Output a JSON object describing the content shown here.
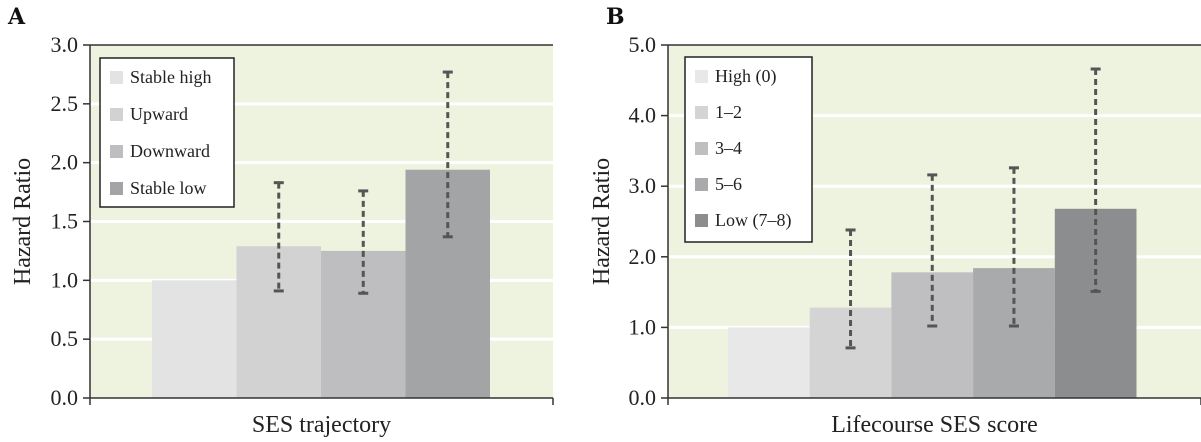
{
  "chart_data": [
    {
      "panel": "A",
      "type": "bar",
      "xlabel": "SES trajectory",
      "ylabel": "Hazard Ratio",
      "ylim": [
        0,
        3.0
      ],
      "yticks": [
        "0.0",
        "0.5",
        "1.0",
        "1.5",
        "2.0",
        "2.5",
        "3.0"
      ],
      "ytick_values": [
        0,
        0.5,
        1.0,
        1.5,
        2.0,
        2.5,
        3.0
      ],
      "grid": true,
      "legend_position": "top-left",
      "categories": [
        "Stable high",
        "Upward",
        "Downward",
        "Stable low"
      ],
      "values": [
        1.0,
        1.29,
        1.25,
        1.94
      ],
      "ci_low": [
        null,
        0.91,
        0.89,
        1.37
      ],
      "ci_high": [
        null,
        1.83,
        1.76,
        2.77
      ],
      "colors": [
        "#e3e3e3",
        "#d2d2d3",
        "#bebec0",
        "#a3a4a6"
      ]
    },
    {
      "panel": "B",
      "type": "bar",
      "xlabel": "Lifecourse SES score",
      "ylabel": "Hazard Ratio",
      "ylim": [
        0,
        5.0
      ],
      "yticks": [
        "0.0",
        "1.0",
        "2.0",
        "3.0",
        "4.0",
        "5.0"
      ],
      "ytick_values": [
        0,
        1.0,
        2.0,
        3.0,
        4.0,
        5.0
      ],
      "grid": true,
      "legend_position": "top-left",
      "categories": [
        "High (0)",
        "1–2",
        "3–4",
        "5–6",
        "Low (7–8)"
      ],
      "values": [
        1.0,
        1.28,
        1.78,
        1.84,
        2.68
      ],
      "ci_low": [
        null,
        0.71,
        1.02,
        1.02,
        1.51
      ],
      "ci_high": [
        null,
        2.38,
        3.16,
        3.26,
        4.66
      ],
      "colors": [
        "#e8e8e8",
        "#d4d4d5",
        "#bfbfc1",
        "#a9aaac",
        "#8c8d8f"
      ]
    }
  ],
  "style": {
    "plot_bg": "#edf3df",
    "grid_color": "#ffffff",
    "axis_color": "#333333",
    "errorbar_color": "#555555"
  }
}
